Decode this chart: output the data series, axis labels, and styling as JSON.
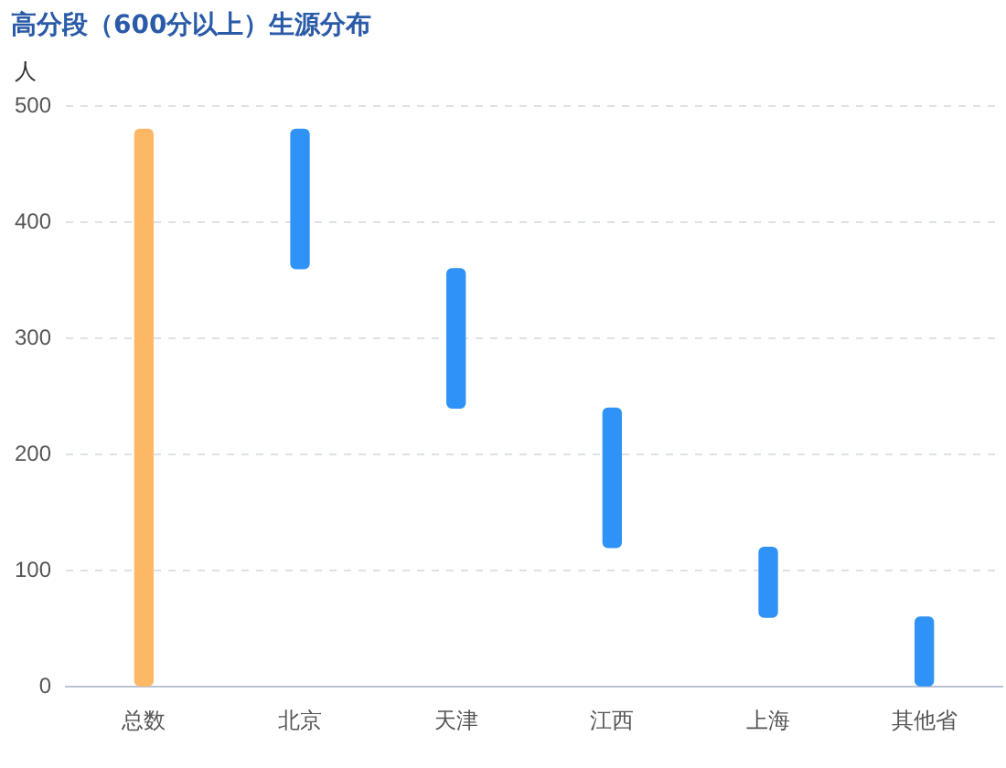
{
  "chart_data": {
    "type": "bar",
    "title": "高分段（600分以上）生源分布",
    "ylabel": "人",
    "categories": [
      "总数",
      "北京",
      "天津",
      "江西",
      "上海",
      "其他省"
    ],
    "values": [
      480,
      120,
      120,
      120,
      60,
      60
    ],
    "base": [
      0,
      360,
      240,
      120,
      60,
      0
    ],
    "colors": [
      "#fdb866",
      "#2f92f6",
      "#2f92f6",
      "#2f92f6",
      "#2f92f6",
      "#2f92f6"
    ],
    "ylim": [
      0,
      500
    ],
    "yticks": [
      0,
      100,
      200,
      300,
      400,
      500
    ],
    "grid": "y",
    "legend": false
  }
}
